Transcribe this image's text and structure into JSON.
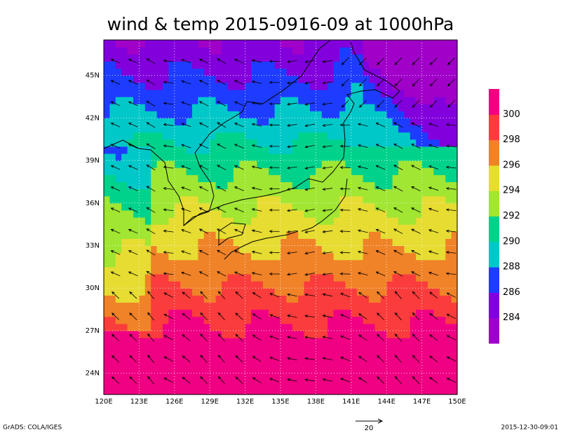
{
  "title": "wind & temp 2015-0916-09 at 1000hPa",
  "map": {
    "lon_labels": [
      "120E",
      "123E",
      "126E",
      "129E",
      "132E",
      "135E",
      "138E",
      "141E",
      "144E",
      "147E",
      "150E"
    ],
    "lat_labels": [
      "24N",
      "27N",
      "30N",
      "33N",
      "36N",
      "39N",
      "42N",
      "45N"
    ],
    "colorbar": {
      "levels": [
        284,
        286,
        288,
        290,
        292,
        294,
        296,
        298,
        300
      ],
      "colors": [
        "#a000c8",
        "#8200dc",
        "#1e3cff",
        "#00c8c8",
        "#00d28c",
        "#a0e632",
        "#e6dc32",
        "#f08228",
        "#fa3c3c",
        "#f00082"
      ]
    }
  },
  "reference_vector": {
    "label": "20"
  },
  "footer": {
    "left": "GrADS: COLA/IGES",
    "right": "2015-12-30-09:01"
  }
}
